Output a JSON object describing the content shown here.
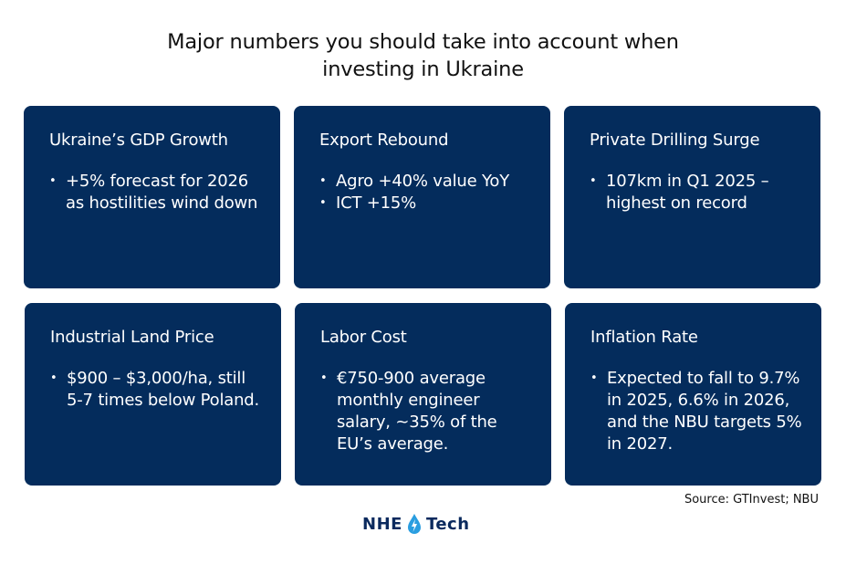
{
  "title_line1": "Major numbers you should take into account when",
  "title_line2": "investing in Ukraine",
  "cards": [
    {
      "title": "Ukraine’s GDP Growth",
      "bullets": [
        "+5% forecast for 2026 as hostilities wind down"
      ]
    },
    {
      "title": "Export Rebound",
      "bullets": [
        "Agro +40% value YoY",
        "ICT +15%"
      ]
    },
    {
      "title": "Private Drilling Surge",
      "bullets": [
        "107km in Q1 2025 – highest on record"
      ]
    },
    {
      "title": "Industrial Land Price",
      "bullets": [
        "$900 – $3,000/ha, still 5-7 times below Poland."
      ]
    },
    {
      "title": "Labor Cost",
      "bullets": [
        "€750-900 average monthly engineer salary, ~35% of the EU’s average."
      ]
    },
    {
      "title": "Inflation Rate",
      "bullets": [
        "Expected to fall to 9.7% in 2025, 6.6% in 2026, and the NBU targets 5% in 2027."
      ]
    }
  ],
  "source": "Source: GTInvest; NBU",
  "logo": {
    "left": "NHE",
    "right": "Tech",
    "icon": "water-drop-lightning-icon"
  },
  "colors": {
    "card": "#042c5c",
    "logo_text": "#0b2a5e",
    "logo_drop": "#2a9ee0"
  }
}
